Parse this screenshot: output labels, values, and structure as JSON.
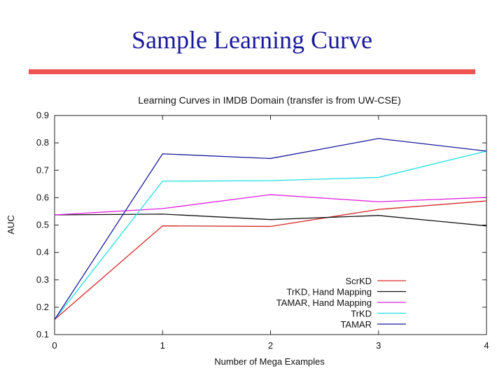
{
  "slide": {
    "title": "Sample Learning Curve"
  },
  "chart_data": {
    "type": "line",
    "title": "Learning Curves in IMDB Domain (transfer is from UW-CSE)",
    "xlabel": "Number of Mega Examples",
    "ylabel": "AUC",
    "x": [
      0,
      1,
      2,
      3,
      4
    ],
    "xlim": [
      0,
      4
    ],
    "ylim": [
      0.1,
      0.9
    ],
    "xticks": [
      "0",
      "1",
      "2",
      "3",
      "4"
    ],
    "yticks": [
      "0.1",
      "0.2",
      "0.3",
      "0.4",
      "0.5",
      "0.6",
      "0.7",
      "0.8",
      "0.9"
    ],
    "grid": false,
    "legend_position": "bottom-right",
    "series": [
      {
        "name": "ScrKD",
        "color": "#d62728",
        "values": [
          0.155,
          0.497,
          0.495,
          0.557,
          0.588
        ]
      },
      {
        "name": "TrKD, Hand Mapping",
        "color": "#111111",
        "values": [
          0.537,
          0.54,
          0.52,
          0.535,
          0.497
        ]
      },
      {
        "name": "TAMAR, Hand Mapping",
        "color": "#e020e0",
        "values": [
          0.537,
          0.56,
          0.611,
          0.585,
          0.601
        ]
      },
      {
        "name": "TrKD",
        "color": "#20e0e0",
        "values": [
          0.155,
          0.66,
          0.662,
          0.674,
          0.77
        ]
      },
      {
        "name": "TAMAR",
        "color": "#1a1a9c",
        "values": [
          0.155,
          0.76,
          0.743,
          0.816,
          0.77
        ]
      }
    ]
  }
}
